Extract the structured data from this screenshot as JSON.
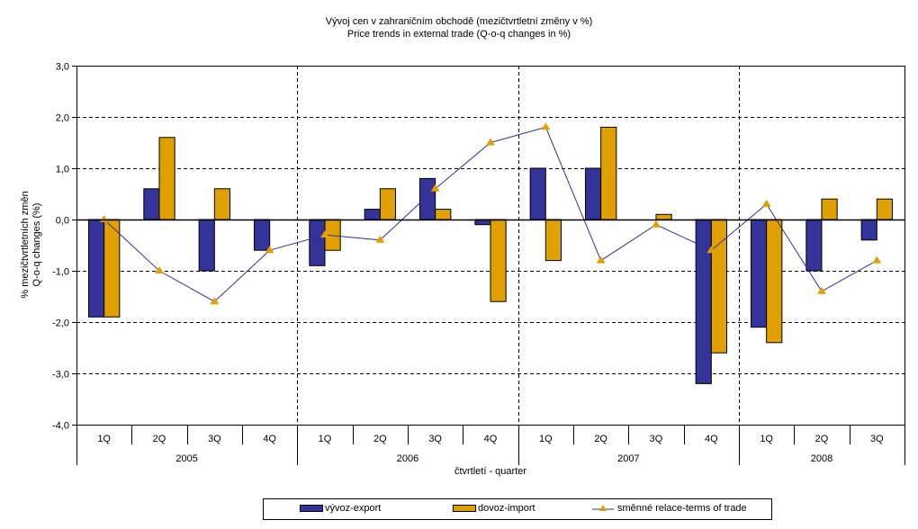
{
  "chart_data": {
    "type": "bar",
    "title": "Vývoj cen v zahraničním obchodě (mezičtvrtletní změny v %)",
    "subtitle": "Price trends in external trade (Q-o-q changes in %)",
    "xlabel": "čtvrtletí - quarter",
    "ylabel_line1": "% mezičtvrtletních změn",
    "ylabel_line2": "Q-o-q changes (%)",
    "ylim": [
      -4.0,
      3.0
    ],
    "yticks": [
      3.0,
      2.0,
      1.0,
      0.0,
      -1.0,
      -2.0,
      -3.0,
      -4.0
    ],
    "ytick_labels": [
      "3,0",
      "2,0",
      "1,0",
      "0,0",
      "-1,0",
      "-2,0",
      "-3,0",
      "-4,0"
    ],
    "grid": true,
    "categories": [
      "1Q",
      "2Q",
      "3Q",
      "4Q",
      "1Q",
      "2Q",
      "3Q",
      "4Q",
      "1Q",
      "2Q",
      "3Q",
      "4Q",
      "1Q",
      "2Q",
      "3Q"
    ],
    "years": [
      {
        "label": "2005",
        "count": 4
      },
      {
        "label": "2006",
        "count": 4
      },
      {
        "label": "2007",
        "count": 4
      },
      {
        "label": "2008",
        "count": 3
      }
    ],
    "series": [
      {
        "name": "vývoz-export",
        "type": "bar",
        "color": "#333399",
        "values": [
          -1.9,
          0.6,
          -1.0,
          -0.6,
          -0.9,
          0.2,
          0.8,
          -0.1,
          1.0,
          1.0,
          0.0,
          -3.2,
          -2.1,
          -1.0,
          -0.4
        ]
      },
      {
        "name": "dovoz-import",
        "type": "bar",
        "color": "#E0A000",
        "values": [
          -1.9,
          1.6,
          0.6,
          0.0,
          -0.6,
          0.6,
          0.2,
          -1.6,
          -0.8,
          1.8,
          0.1,
          -2.6,
          -2.4,
          0.4,
          0.4
        ]
      },
      {
        "name": "směnné relace-terms of trade",
        "type": "line",
        "color": "#333399",
        "marker_color": "#E0A000",
        "values": [
          0.0,
          -1.0,
          -1.6,
          -0.6,
          -0.3,
          -0.4,
          0.6,
          1.5,
          1.8,
          -0.8,
          -0.1,
          -0.6,
          0.3,
          -1.4,
          -0.8
        ]
      }
    ],
    "legend_position": "bottom"
  }
}
